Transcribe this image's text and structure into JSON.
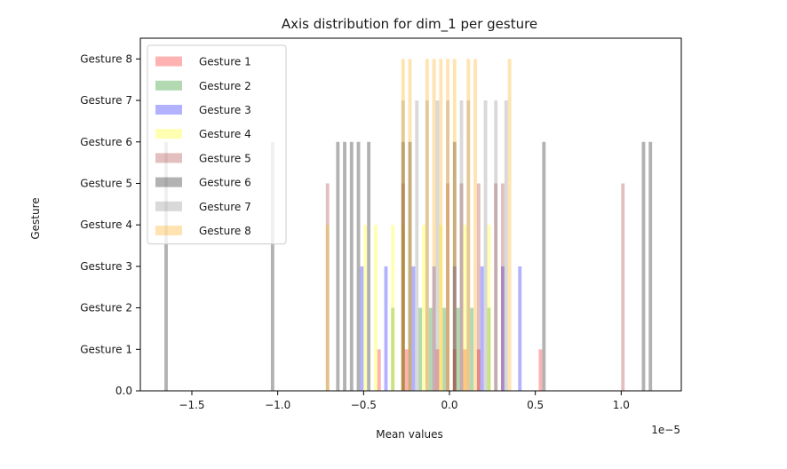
{
  "chart_data": {
    "type": "bar",
    "orientation": "histogram",
    "title": "Axis distribution for dim_1 per gesture",
    "xlabel": "Mean values",
    "ylabel": "Gesture",
    "x_offset_label": "1e−5",
    "xlim": [
      -1.8,
      1.35
    ],
    "ylim": [
      0,
      8.5
    ],
    "x_ticks": [
      {
        "value": -1.5,
        "label": "−1.5"
      },
      {
        "value": -1.0,
        "label": "−1.0"
      },
      {
        "value": -0.5,
        "label": "−0.5"
      },
      {
        "value": 0.0,
        "label": "0.0"
      },
      {
        "value": 0.5,
        "label": "0.5"
      },
      {
        "value": 1.0,
        "label": "1.0"
      }
    ],
    "y_ticks": [
      {
        "value": 0,
        "label": "0.0"
      },
      {
        "value": 1,
        "label": "Gesture 1"
      },
      {
        "value": 2,
        "label": "Gesture 2"
      },
      {
        "value": 3,
        "label": "Gesture 3"
      },
      {
        "value": 4,
        "label": "Gesture 4"
      },
      {
        "value": 5,
        "label": "Gesture 5"
      },
      {
        "value": 6,
        "label": "Gesture 6"
      },
      {
        "value": 7,
        "label": "Gesture 7"
      },
      {
        "value": 8,
        "label": "Gesture 8"
      }
    ],
    "legend_position": "upper-left",
    "grid": false,
    "series": [
      {
        "name": "Gesture 1",
        "color": "#ff0000",
        "opacity": 0.3,
        "height": 1,
        "x": [
          -0.42,
          -0.4,
          -0.26,
          -0.24,
          -0.08,
          -0.06,
          0.02,
          0.04,
          0.08,
          0.1,
          0.16,
          0.18,
          0.52,
          0.54
        ]
      },
      {
        "name": "Gesture 2",
        "color": "#008000",
        "opacity": 0.3,
        "height": 2,
        "x": [
          -0.34,
          -0.32,
          -0.18,
          -0.16,
          -0.12,
          -0.1,
          -0.04,
          -0.02,
          0.04,
          0.06,
          0.12,
          0.14,
          0.22,
          0.24
        ]
      },
      {
        "name": "Gesture 3",
        "color": "#0000ff",
        "opacity": 0.3,
        "height": 3,
        "x": [
          -0.52,
          -0.5,
          -0.38,
          -0.36,
          -0.22,
          -0.2,
          -0.1,
          -0.08,
          0.02,
          0.04,
          0.18,
          0.2,
          0.3,
          0.32,
          0.4,
          0.42
        ]
      },
      {
        "name": "Gesture 4",
        "color": "#ffff00",
        "opacity": 0.3,
        "height": 4,
        "x": [
          -0.72,
          -0.7,
          -0.5,
          -0.48,
          -0.44,
          -0.42,
          -0.34,
          -0.32,
          -0.28,
          -0.26,
          -0.16,
          -0.14,
          -0.06,
          -0.04,
          0.08,
          0.1,
          0.22,
          0.24
        ]
      },
      {
        "name": "Gesture 5",
        "color": "#a52a2a",
        "opacity": 0.3,
        "height": 5,
        "x": [
          -0.72,
          -0.7,
          -0.28,
          -0.26,
          -0.02,
          0.0,
          0.06,
          0.08,
          0.16,
          0.18,
          0.26,
          0.28,
          0.3,
          0.32,
          1.0,
          1.02
        ]
      },
      {
        "name": "Gesture 6",
        "color": "#000000",
        "opacity": 0.3,
        "height": 6,
        "x": [
          -1.66,
          -1.64,
          -1.04,
          -1.02,
          -0.66,
          -0.64,
          -0.62,
          -0.6,
          -0.58,
          -0.56,
          -0.54,
          -0.52,
          -0.48,
          -0.46,
          -0.28,
          -0.26,
          -0.24,
          -0.22,
          0.02,
          0.04,
          0.54,
          0.56,
          1.12,
          1.14,
          1.16,
          1.18
        ]
      },
      {
        "name": "Gesture 7",
        "color": "#808080",
        "opacity": 0.3,
        "height": 7,
        "x": [
          -0.28,
          -0.26,
          -0.2,
          -0.18,
          -0.14,
          -0.12,
          -0.08,
          -0.06,
          -0.02,
          0.0,
          0.06,
          0.08,
          0.1,
          0.12,
          0.2,
          0.22,
          0.26,
          0.28,
          0.32,
          0.34
        ]
      },
      {
        "name": "Gesture 8",
        "color": "#ffa500",
        "opacity": 0.3,
        "height": 8,
        "x": [
          -0.28,
          -0.26,
          -0.24,
          -0.22,
          -0.14,
          -0.12,
          -0.1,
          -0.08,
          -0.06,
          -0.04,
          -0.02,
          0.0,
          0.02,
          0.04,
          0.1,
          0.12,
          0.14,
          0.16,
          0.34,
          0.36
        ]
      }
    ]
  }
}
